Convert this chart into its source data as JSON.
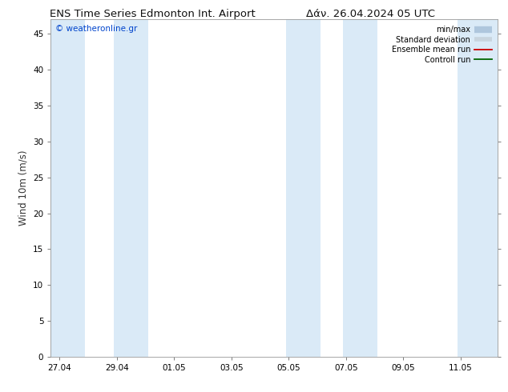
{
  "title_left": "ENS Time Series Edmonton Int. Airport",
  "title_right": "Δάν. 26.04.2024 05 UTC",
  "ylabel": "Wind 10m (m/s)",
  "watermark": "© weatheronline.gr",
  "bg_color": "#ffffff",
  "plot_bg_color": "#ffffff",
  "band_color": "#daeaf7",
  "ylim": [
    0,
    47
  ],
  "yticks": [
    0,
    5,
    10,
    15,
    20,
    25,
    30,
    35,
    40,
    45
  ],
  "xtick_labels": [
    "27.04",
    "29.04",
    "01.05",
    "03.05",
    "05.05",
    "07.05",
    "09.05",
    "11.05"
  ],
  "xtick_positions": [
    0,
    2,
    4,
    6,
    8,
    10,
    12,
    14
  ],
  "xlim": [
    -0.3,
    15.3
  ],
  "shade_bands": [
    [
      -0.3,
      0.9
    ],
    [
      1.9,
      3.1
    ],
    [
      7.9,
      9.1
    ],
    [
      9.9,
      11.1
    ],
    [
      13.9,
      15.3
    ]
  ],
  "legend_labels": [
    "min/max",
    "Standard deviation",
    "Ensemble mean run",
    "Controll run"
  ],
  "title_fontsize": 9.5,
  "tick_fontsize": 7.5,
  "ylabel_fontsize": 8.5
}
